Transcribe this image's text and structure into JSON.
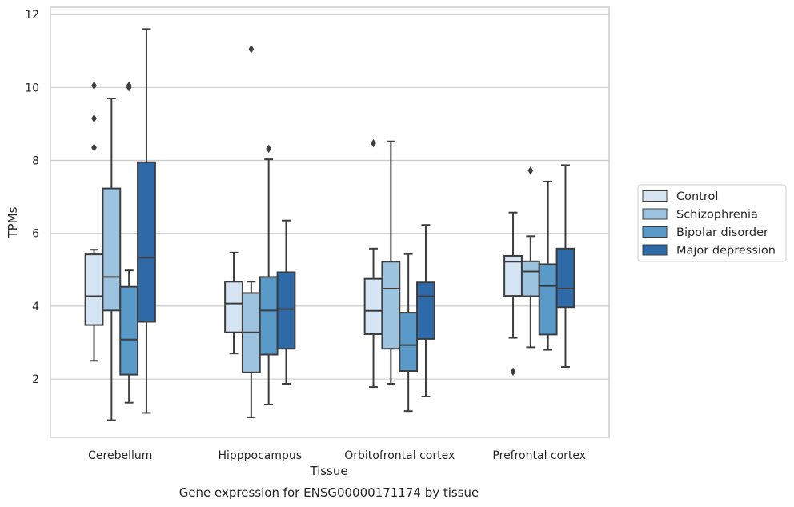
{
  "chart_data": {
    "type": "box",
    "title": "",
    "caption": "Gene expression for ENSG00000171174 by tissue",
    "xlabel": "Tissue",
    "ylabel": "TPMs",
    "ylim": [
      0.4,
      12.2
    ],
    "yticks": [
      2,
      4,
      6,
      8,
      10,
      12
    ],
    "grid": true,
    "legend_position": "right",
    "categories": [
      "Cerebellum",
      "Hipppocampus",
      "Orbitofrontal cortex",
      "Prefrontal cortex"
    ],
    "series": [
      {
        "name": "Control",
        "color": "#d6e5f4",
        "boxes": [
          {
            "whislo": 2.5,
            "q1": 3.48,
            "med": 4.27,
            "q3": 5.42,
            "whishi": 5.55,
            "fliers": [
              8.35,
              9.15,
              10.05
            ]
          },
          {
            "whislo": 2.7,
            "q1": 3.28,
            "med": 4.07,
            "q3": 4.67,
            "whishi": 5.47,
            "fliers": []
          },
          {
            "whislo": 1.78,
            "q1": 3.23,
            "med": 3.87,
            "q3": 4.75,
            "whishi": 5.58,
            "fliers": [
              8.47
            ]
          },
          {
            "whislo": 3.13,
            "q1": 4.28,
            "med": 5.22,
            "q3": 5.38,
            "whishi": 6.57,
            "fliers": [
              2.2
            ]
          }
        ]
      },
      {
        "name": "Schizophrenia",
        "color": "#9cc4e0",
        "boxes": [
          {
            "whislo": 0.87,
            "q1": 3.88,
            "med": 4.8,
            "q3": 7.23,
            "whishi": 9.7,
            "fliers": []
          },
          {
            "whislo": 0.95,
            "q1": 2.18,
            "med": 3.28,
            "q3": 4.36,
            "whishi": 4.67,
            "fliers": [
              11.05
            ]
          },
          {
            "whislo": 1.87,
            "q1": 2.83,
            "med": 4.48,
            "q3": 5.22,
            "whishi": 8.52,
            "fliers": []
          },
          {
            "whislo": 2.87,
            "q1": 4.27,
            "med": 4.95,
            "q3": 5.23,
            "whishi": 5.92,
            "fliers": [
              7.72
            ]
          }
        ]
      },
      {
        "name": "Bipolar disorder",
        "color": "#5a9ac8",
        "boxes": [
          {
            "whislo": 1.35,
            "q1": 2.12,
            "med": 3.08,
            "q3": 4.53,
            "whishi": 4.98,
            "fliers": [
              10.0,
              10.05
            ]
          },
          {
            "whislo": 1.3,
            "q1": 2.67,
            "med": 3.88,
            "q3": 4.8,
            "whishi": 8.03,
            "fliers": [
              8.32
            ]
          },
          {
            "whislo": 1.12,
            "q1": 2.22,
            "med": 2.93,
            "q3": 3.82,
            "whishi": 5.43,
            "fliers": []
          },
          {
            "whislo": 2.8,
            "q1": 3.22,
            "med": 4.55,
            "q3": 5.15,
            "whishi": 7.42,
            "fliers": []
          }
        ]
      },
      {
        "name": "Major depression",
        "color": "#2f6aa8",
        "boxes": [
          {
            "whislo": 1.07,
            "q1": 3.57,
            "med": 5.33,
            "q3": 7.95,
            "whishi": 11.6,
            "fliers": []
          },
          {
            "whislo": 1.87,
            "q1": 2.83,
            "med": 3.92,
            "q3": 4.93,
            "whishi": 6.35,
            "fliers": []
          },
          {
            "whislo": 1.52,
            "q1": 3.1,
            "med": 4.27,
            "q3": 4.65,
            "whishi": 6.23,
            "fliers": []
          },
          {
            "whislo": 2.33,
            "q1": 3.97,
            "med": 4.48,
            "q3": 5.58,
            "whishi": 7.87,
            "fliers": []
          }
        ]
      }
    ]
  }
}
